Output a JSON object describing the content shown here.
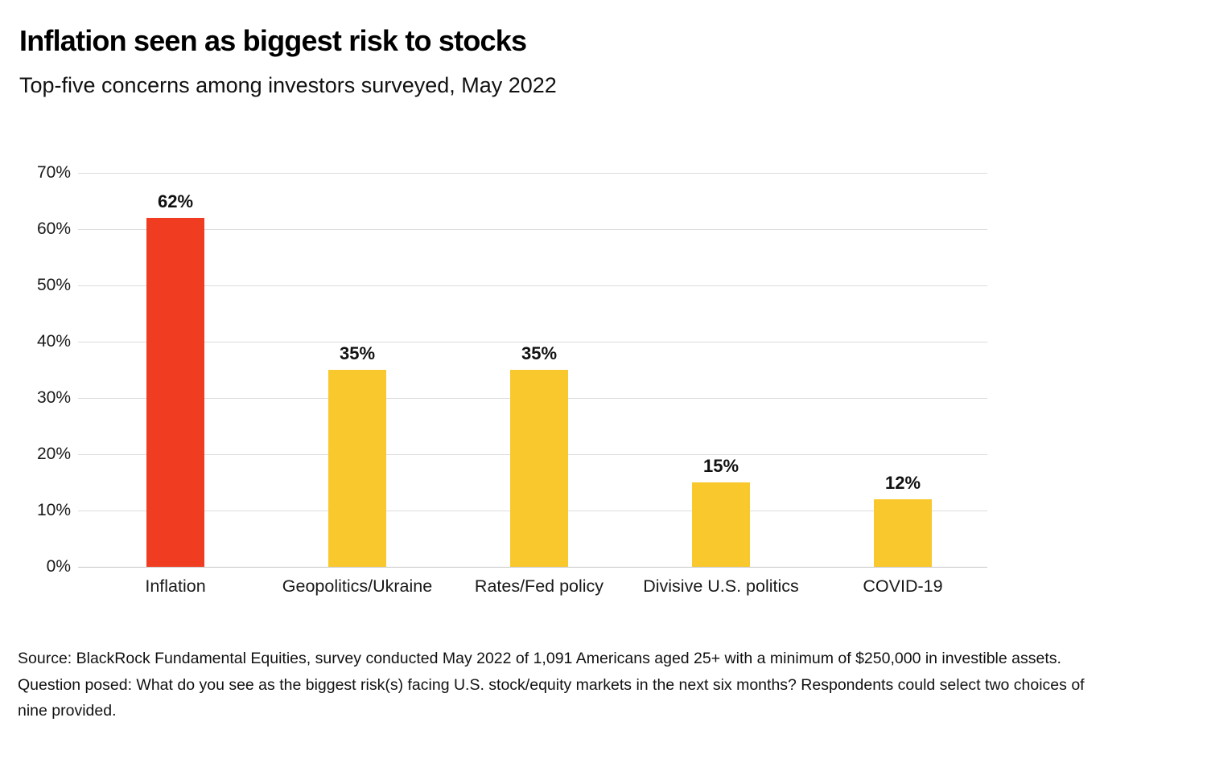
{
  "header": {
    "title": "Inflation seen as biggest risk to stocks",
    "subtitle": "Top-five concerns among investors surveyed, May 2022"
  },
  "chart_data": {
    "type": "bar",
    "title": "Inflation seen as biggest risk to stocks",
    "subtitle": "Top-five concerns among investors surveyed, May 2022",
    "categories": [
      "Inflation",
      "Geopolitics/Ukraine",
      "Rates/Fed policy",
      "Divisive U.S. politics",
      "COVID-19"
    ],
    "values": [
      62,
      35,
      35,
      15,
      12
    ],
    "value_labels": [
      "62%",
      "35%",
      "35%",
      "15%",
      "12%"
    ],
    "bar_colors": [
      "#f03c21",
      "#f9c82d",
      "#f9c82d",
      "#f9c82d",
      "#f9c82d"
    ],
    "xlabel": "",
    "ylabel": "",
    "ylim": [
      0,
      70
    ],
    "yticks": [
      0,
      10,
      20,
      30,
      40,
      50,
      60,
      70
    ],
    "ytick_labels": [
      "0%",
      "10%",
      "20%",
      "30%",
      "40%",
      "50%",
      "60%",
      "70%"
    ],
    "grid": "horizontal",
    "legend_position": "none"
  },
  "colors": {
    "accent_red": "#f03c21",
    "accent_yellow": "#f9c82d",
    "gridline": "#dcdcdc",
    "zero_line": "#c6c6c6",
    "text": "#111111"
  },
  "footnote": {
    "lines": [
      "Source: BlackRock Fundamental Equities, survey conducted May 2022 of 1,091 Americans aged 25+ with a minimum of $250,000 in investible assets.",
      "Question posed: What do you see as the biggest risk(s) facing U.S. stock/equity markets in the next six months? Respondents could select two choices of",
      "nine provided."
    ]
  }
}
